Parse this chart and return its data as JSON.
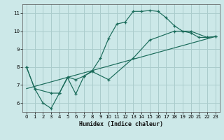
{
  "xlabel": "Humidex (Indice chaleur)",
  "background_color": "#cce8e8",
  "grid_color": "#aacccc",
  "line_color": "#1a6b5a",
  "xlim": [
    -0.5,
    23.5
  ],
  "ylim": [
    5.5,
    11.5
  ],
  "yticks": [
    6,
    7,
    8,
    9,
    10,
    11
  ],
  "xticks": [
    0,
    1,
    2,
    3,
    4,
    5,
    6,
    7,
    8,
    9,
    10,
    11,
    12,
    13,
    14,
    15,
    16,
    17,
    18,
    19,
    20,
    21,
    22,
    23
  ],
  "line1_x": [
    0,
    1,
    2,
    3,
    4,
    5,
    6,
    7,
    8,
    9,
    10,
    11,
    12,
    13,
    14,
    15,
    16,
    17,
    18,
    19,
    20,
    21,
    22,
    23
  ],
  "line1_y": [
    8.0,
    6.8,
    6.0,
    5.7,
    6.55,
    7.45,
    7.3,
    7.5,
    7.8,
    8.5,
    9.6,
    10.4,
    10.5,
    11.1,
    11.1,
    11.15,
    11.1,
    10.75,
    10.3,
    10.0,
    9.9,
    9.65,
    9.65,
    9.7
  ],
  "line2_x": [
    0,
    1,
    3,
    4,
    5,
    6,
    7,
    8,
    10,
    13,
    15,
    18,
    20,
    22,
    23
  ],
  "line2_y": [
    8.0,
    6.8,
    6.55,
    6.55,
    7.4,
    6.5,
    7.5,
    7.75,
    7.3,
    8.5,
    9.5,
    10.0,
    10.0,
    9.65,
    9.7
  ],
  "line3_x": [
    0,
    23
  ],
  "line3_y": [
    6.8,
    9.7
  ]
}
